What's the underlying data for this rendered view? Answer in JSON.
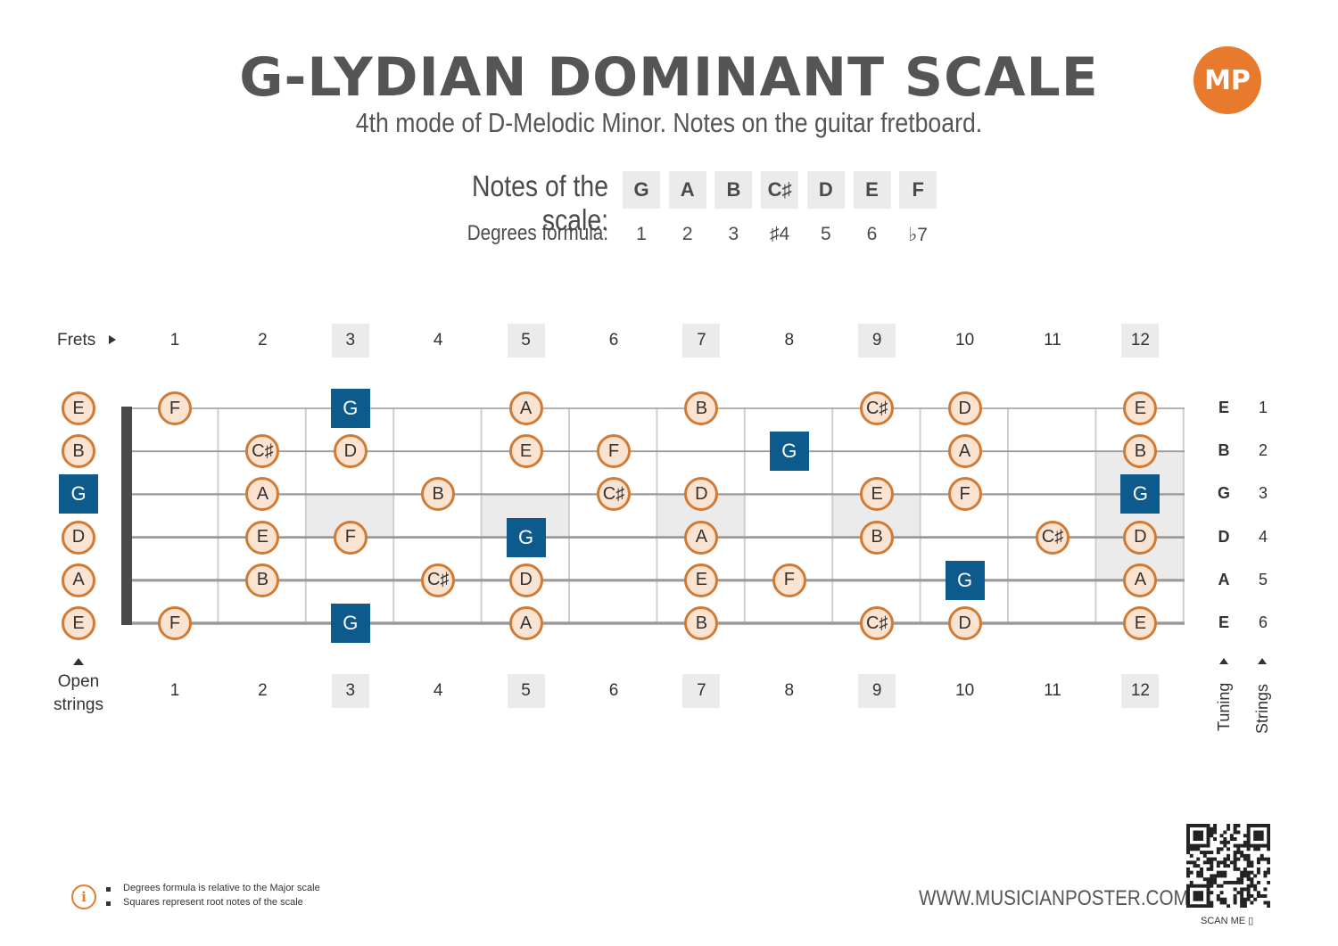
{
  "header": {
    "title": "G-LYDIAN DOMINANT SCALE",
    "subtitle": "4th mode of D-Melodic Minor. Notes on the guitar fretboard.",
    "logo": "MP"
  },
  "scale": {
    "notes_label": "Notes of the scale:",
    "degrees_label": "Degrees formula:",
    "notes": [
      "G",
      "A",
      "B",
      "C♯",
      "D",
      "E",
      "F"
    ],
    "degrees": [
      "1",
      "2",
      "3",
      "♯4",
      "5",
      "6",
      "♭7"
    ]
  },
  "fretboard": {
    "frets_label": "Frets",
    "open_label": "Open strings",
    "fret_numbers": [
      "1",
      "2",
      "3",
      "4",
      "5",
      "6",
      "7",
      "8",
      "9",
      "10",
      "11",
      "12"
    ],
    "marker_frets": [
      3,
      5,
      7,
      9,
      12
    ],
    "tuning_label": "Tuning",
    "strings_label": "Strings",
    "tuning": [
      "E",
      "B",
      "G",
      "D",
      "A",
      "E"
    ],
    "string_numbers": [
      "1",
      "2",
      "3",
      "4",
      "5",
      "6"
    ],
    "root_note": "G",
    "notes": [
      {
        "string": 1,
        "fret": 0,
        "note": "E"
      },
      {
        "string": 1,
        "fret": 1,
        "note": "F"
      },
      {
        "string": 1,
        "fret": 3,
        "note": "G"
      },
      {
        "string": 1,
        "fret": 5,
        "note": "A"
      },
      {
        "string": 1,
        "fret": 7,
        "note": "B"
      },
      {
        "string": 1,
        "fret": 9,
        "note": "C♯"
      },
      {
        "string": 1,
        "fret": 10,
        "note": "D"
      },
      {
        "string": 1,
        "fret": 12,
        "note": "E"
      },
      {
        "string": 2,
        "fret": 0,
        "note": "B"
      },
      {
        "string": 2,
        "fret": 2,
        "note": "C♯"
      },
      {
        "string": 2,
        "fret": 3,
        "note": "D"
      },
      {
        "string": 2,
        "fret": 5,
        "note": "E"
      },
      {
        "string": 2,
        "fret": 6,
        "note": "F"
      },
      {
        "string": 2,
        "fret": 8,
        "note": "G"
      },
      {
        "string": 2,
        "fret": 10,
        "note": "A"
      },
      {
        "string": 2,
        "fret": 12,
        "note": "B"
      },
      {
        "string": 3,
        "fret": 0,
        "note": "G"
      },
      {
        "string": 3,
        "fret": 2,
        "note": "A"
      },
      {
        "string": 3,
        "fret": 4,
        "note": "B"
      },
      {
        "string": 3,
        "fret": 6,
        "note": "C♯"
      },
      {
        "string": 3,
        "fret": 7,
        "note": "D"
      },
      {
        "string": 3,
        "fret": 9,
        "note": "E"
      },
      {
        "string": 3,
        "fret": 10,
        "note": "F"
      },
      {
        "string": 3,
        "fret": 12,
        "note": "G"
      },
      {
        "string": 4,
        "fret": 0,
        "note": "D"
      },
      {
        "string": 4,
        "fret": 2,
        "note": "E"
      },
      {
        "string": 4,
        "fret": 3,
        "note": "F"
      },
      {
        "string": 4,
        "fret": 5,
        "note": "G"
      },
      {
        "string": 4,
        "fret": 7,
        "note": "A"
      },
      {
        "string": 4,
        "fret": 9,
        "note": "B"
      },
      {
        "string": 4,
        "fret": 11,
        "note": "C♯"
      },
      {
        "string": 4,
        "fret": 12,
        "note": "D"
      },
      {
        "string": 5,
        "fret": 0,
        "note": "A"
      },
      {
        "string": 5,
        "fret": 2,
        "note": "B"
      },
      {
        "string": 5,
        "fret": 4,
        "note": "C♯"
      },
      {
        "string": 5,
        "fret": 5,
        "note": "D"
      },
      {
        "string": 5,
        "fret": 7,
        "note": "E"
      },
      {
        "string": 5,
        "fret": 8,
        "note": "F"
      },
      {
        "string": 5,
        "fret": 10,
        "note": "G"
      },
      {
        "string": 5,
        "fret": 12,
        "note": "A"
      },
      {
        "string": 6,
        "fret": 0,
        "note": "E"
      },
      {
        "string": 6,
        "fret": 1,
        "note": "F"
      },
      {
        "string": 6,
        "fret": 3,
        "note": "G"
      },
      {
        "string": 6,
        "fret": 5,
        "note": "A"
      },
      {
        "string": 6,
        "fret": 7,
        "note": "B"
      },
      {
        "string": 6,
        "fret": 9,
        "note": "C♯"
      },
      {
        "string": 6,
        "fret": 10,
        "note": "D"
      },
      {
        "string": 6,
        "fret": 12,
        "note": "E"
      }
    ]
  },
  "footer": {
    "notes": [
      "Degrees formula is relative to the Major scale",
      "Squares represent root notes of the scale"
    ],
    "website": "WWW.MUSICIANPOSTER.COM",
    "scan_label": "SCAN ME"
  },
  "colors": {
    "root_fill": "#0d5a8c",
    "note_fill": "#fbe3d2",
    "note_border": "#d07a34",
    "accent": "#e87a2e"
  }
}
